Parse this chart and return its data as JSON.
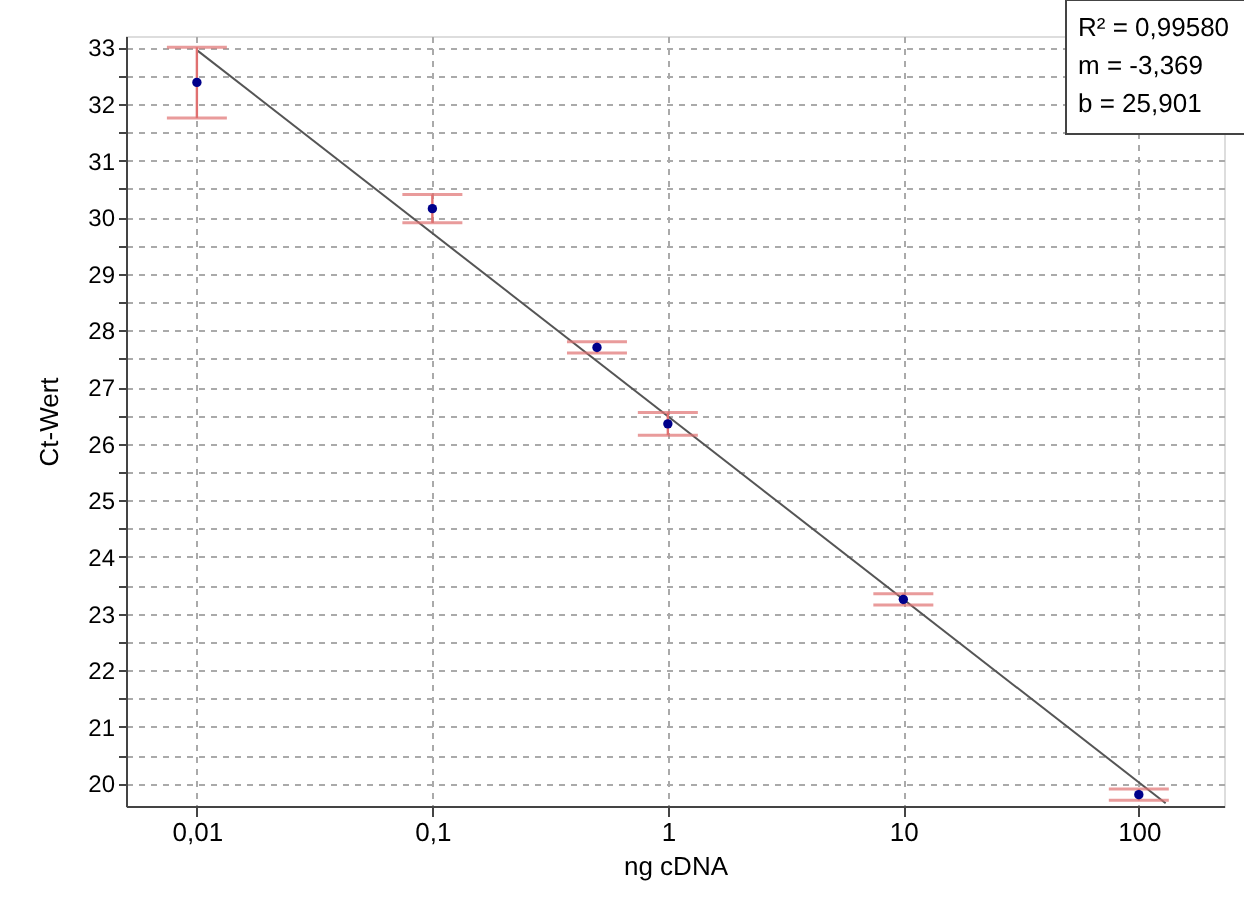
{
  "chart_data": {
    "type": "scatter",
    "xlabel": "ng cDNA",
    "ylabel": "Ct-Wert",
    "log": "x",
    "grid": true,
    "marker": "circle",
    "xlim": [
      0.005,
      230
    ],
    "ylim": [
      19.6,
      33.2
    ],
    "xticks": [
      {
        "value": 0.01,
        "label": "0,01"
      },
      {
        "value": 0.1,
        "label": "0,1"
      },
      1,
      10,
      100
    ],
    "yticks": [
      20,
      {
        "value": 20.5,
        "label": null
      },
      21,
      {
        "value": 21.5,
        "label": null
      },
      22,
      {
        "value": 22.5,
        "label": null
      },
      23,
      {
        "value": 23.5,
        "label": null
      },
      24,
      {
        "value": 24.5,
        "label": null
      },
      25,
      {
        "value": 25.5,
        "label": null
      },
      26,
      {
        "value": 26.5,
        "label": null
      },
      27,
      {
        "value": 27.5,
        "label": null
      },
      28,
      {
        "value": 28.5,
        "label": null
      },
      29,
      {
        "value": 29.5,
        "label": null
      },
      30,
      {
        "value": 30.5,
        "label": null
      },
      31,
      {
        "value": 31.5,
        "label": null
      },
      32,
      {
        "value": 32.5,
        "label": null
      },
      33
    ],
    "series": [
      {
        "type": "line",
        "marker": "none",
        "color": "#555555",
        "x": [
          0.01,
          130
        ],
        "values": [
          32.95,
          19.65
        ]
      },
      {
        "color": "#00008b",
        "x": [
          0.01,
          0.1,
          0.5,
          1,
          10,
          100
        ],
        "values": [
          32.38,
          30.15,
          27.7,
          26.35,
          23.25,
          19.8
        ],
        "errors": [
          [
            31.75,
            33.0
          ],
          [
            29.9,
            30.4
          ],
          [
            27.6,
            27.8
          ],
          [
            26.15,
            26.55
          ],
          [
            23.15,
            23.35
          ],
          [
            19.7,
            19.9
          ]
        ]
      }
    ],
    "annotations": [
      "R² = 0,99580",
      "m = -3,369",
      "b = 25,901"
    ]
  }
}
